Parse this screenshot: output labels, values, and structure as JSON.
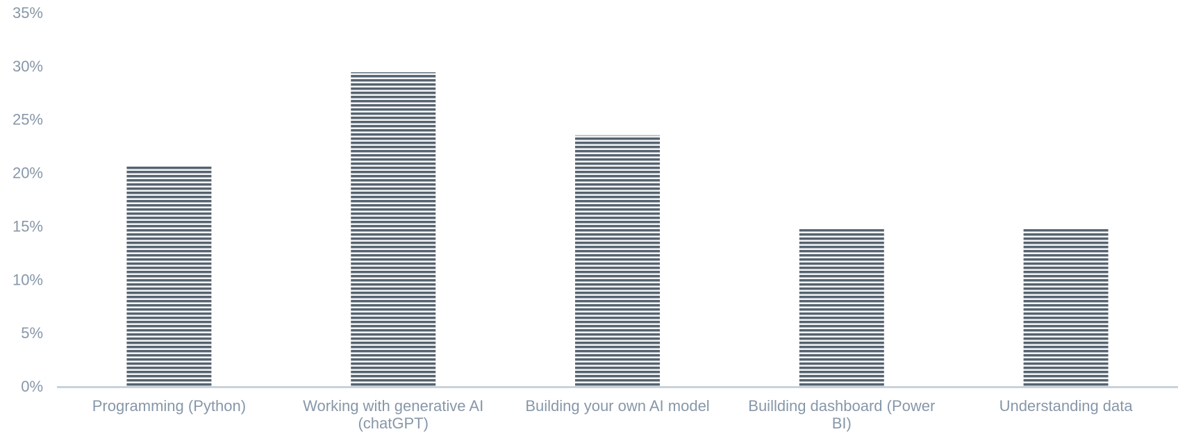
{
  "chart_data": {
    "type": "bar",
    "title": "",
    "xlabel": "",
    "ylabel": "",
    "categories": [
      "Programming (Python)",
      "Working with generative AI (chatGPT)",
      "Building your own AI model",
      "Buillding dashboard (Power BI)",
      "Understanding data"
    ],
    "category_lines": [
      [
        "Programming (Python)"
      ],
      [
        "Working with generative AI",
        "(chatGPT)"
      ],
      [
        "Building your own AI model"
      ],
      [
        "Buillding dashboard (Power",
        "BI)"
      ],
      [
        "Understanding data"
      ]
    ],
    "values": [
      20.6,
      29.4,
      23.5,
      14.7,
      14.7
    ],
    "ylim": [
      0,
      35
    ],
    "y_ticks": [
      0,
      5,
      10,
      15,
      20,
      25,
      30,
      35
    ],
    "y_tick_labels": [
      "0%",
      "5%",
      "10%",
      "15%",
      "20%",
      "25%",
      "30%",
      "35%"
    ],
    "y_format": "percent",
    "grid": false,
    "legend": "none",
    "colors": {
      "bar_stripe_dark": "#56636f",
      "bar_stripe_light": "#f2f4f6",
      "axis_line": "#c9d2da",
      "label_text": "#8797a8"
    }
  }
}
